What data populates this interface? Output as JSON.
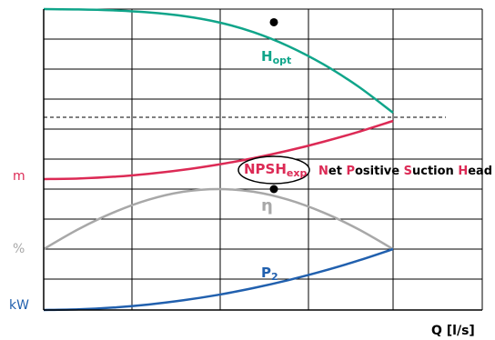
{
  "chart_data": {
    "type": "line",
    "title": "",
    "xlabel": "Q [l/s]",
    "grid": true,
    "colors": {
      "head": "#10a58a",
      "npsh": "#dc2a55",
      "efficiency": "#a8a8a8",
      "power": "#2160ae",
      "axis": "#000000"
    },
    "axis_units": [
      {
        "label": "m",
        "color": "#dc2a55"
      },
      {
        "label": "%",
        "color": "#a8a8a8"
      },
      {
        "label": "kW",
        "color": "#2160ae"
      }
    ],
    "series": [
      {
        "key": "head",
        "label_main": "H",
        "label_sub": "opt",
        "x": [
          0,
          0.1,
          0.2,
          0.3,
          0.4,
          0.5,
          0.6,
          0.7,
          0.8,
          0.9,
          1.0
        ],
        "y": [
          10.0,
          9.98,
          9.92,
          9.8,
          9.58,
          9.2,
          8.6,
          7.75,
          6.65,
          5.3,
          3.7
        ]
      },
      {
        "key": "npsh",
        "label_main": "NPSH",
        "label_sub": "exp",
        "x": [
          0,
          0.1,
          0.2,
          0.3,
          0.4,
          0.5,
          0.6,
          0.7,
          0.8,
          0.9,
          1.0
        ],
        "y": [
          0.0,
          0.03,
          0.12,
          0.27,
          0.48,
          0.75,
          1.08,
          1.47,
          1.92,
          2.43,
          3.0
        ]
      },
      {
        "key": "efficiency",
        "label_main": "η",
        "label_sub": "",
        "x": [
          0,
          0.1,
          0.2,
          0.3,
          0.4,
          0.5,
          0.6,
          0.7,
          0.8,
          0.9,
          1.0
        ],
        "y": [
          0.0,
          0.3,
          0.55,
          0.74,
          0.86,
          0.9,
          0.86,
          0.74,
          0.55,
          0.3,
          0.0
        ]
      },
      {
        "key": "power",
        "label_main": "P",
        "label_sub": "2",
        "x": [
          0,
          0.1,
          0.2,
          0.3,
          0.4,
          0.5,
          0.6,
          0.7,
          0.8,
          0.9,
          1.0
        ],
        "y": [
          0.0,
          0.01,
          0.04,
          0.09,
          0.16,
          0.25,
          0.36,
          0.49,
          0.64,
          0.81,
          1.0
        ]
      }
    ],
    "legend_text": [
      {
        "text": "N",
        "color": "#dc2a55"
      },
      {
        "text": "et ",
        "color": "#000000"
      },
      {
        "text": "P",
        "color": "#dc2a55"
      },
      {
        "text": "ositive ",
        "color": "#000000"
      },
      {
        "text": "S",
        "color": "#dc2a55"
      },
      {
        "text": "uction ",
        "color": "#000000"
      },
      {
        "text": "H",
        "color": "#dc2a55"
      },
      {
        "text": "ead",
        "color": "#000000"
      }
    ]
  }
}
